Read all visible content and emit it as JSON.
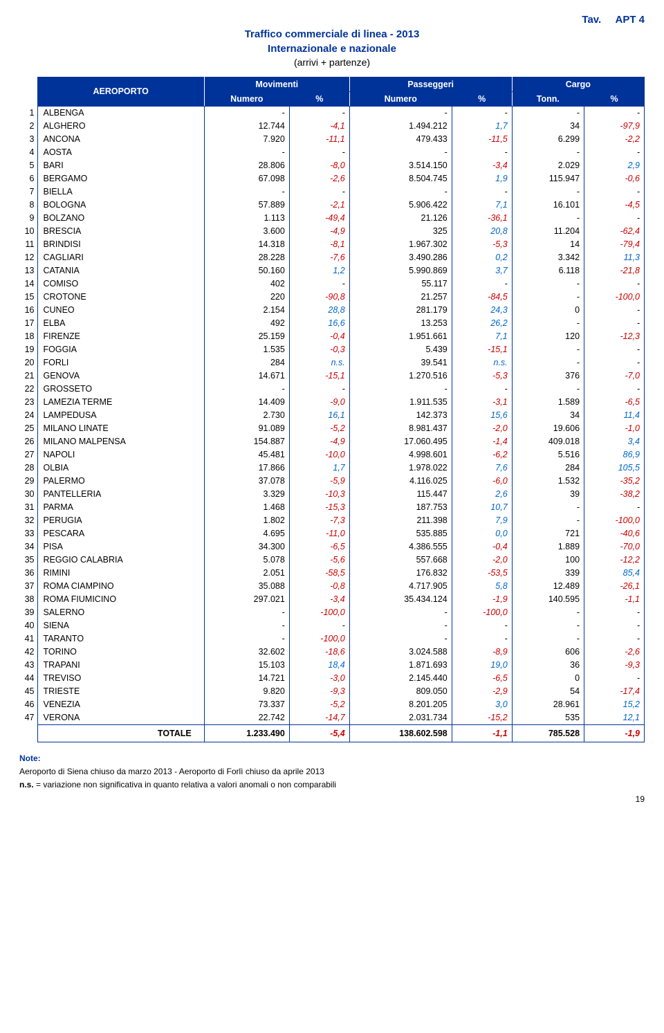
{
  "tav_label": "Tav.",
  "tav_code": "APT 4",
  "title_line1": "Traffico commerciale di linea - 2013",
  "title_line2": "Internazionale e nazionale",
  "title_line3": "(arrivi + partenze)",
  "header": {
    "aeroporto": "AEROPORTO",
    "movimenti": "Movimenti",
    "passeggeri": "Passeggeri",
    "cargo": "Cargo",
    "numero": "Numero",
    "pct": "%",
    "tonn": "Tonn."
  },
  "colors": {
    "neg": "#cc0000",
    "pos": "#0066cc",
    "neutral": "#000000"
  },
  "rows": [
    {
      "n": "1",
      "name": "ALBENGA",
      "m": "-",
      "mp": "-",
      "p": "-",
      "pp": "-",
      "c": "-",
      "cp": "-"
    },
    {
      "n": "2",
      "name": "ALGHERO",
      "m": "12.744",
      "mp": "-4,1",
      "p": "1.494.212",
      "pp": "1,7",
      "c": "34",
      "cp": "-97,9"
    },
    {
      "n": "3",
      "name": "ANCONA",
      "m": "7.920",
      "mp": "-11,1",
      "p": "479.433",
      "pp": "-11,5",
      "c": "6.299",
      "cp": "-2,2"
    },
    {
      "n": "4",
      "name": "AOSTA",
      "m": "-",
      "mp": "-",
      "p": "-",
      "pp": "-",
      "c": "-",
      "cp": "-"
    },
    {
      "n": "5",
      "name": "BARI",
      "m": "28.806",
      "mp": "-8,0",
      "p": "3.514.150",
      "pp": "-3,4",
      "c": "2.029",
      "cp": "2,9"
    },
    {
      "n": "6",
      "name": "BERGAMO",
      "m": "67.098",
      "mp": "-2,6",
      "p": "8.504.745",
      "pp": "1,9",
      "c": "115.947",
      "cp": "-0,6"
    },
    {
      "n": "7",
      "name": "BIELLA",
      "m": "-",
      "mp": "-",
      "p": "-",
      "pp": "-",
      "c": "-",
      "cp": "-"
    },
    {
      "n": "8",
      "name": "BOLOGNA",
      "m": "57.889",
      "mp": "-2,1",
      "p": "5.906.422",
      "pp": "7,1",
      "c": "16.101",
      "cp": "-4,5"
    },
    {
      "n": "9",
      "name": "BOLZANO",
      "m": "1.113",
      "mp": "-49,4",
      "p": "21.126",
      "pp": "-36,1",
      "c": "-",
      "cp": "-"
    },
    {
      "n": "10",
      "name": "BRESCIA",
      "m": "3.600",
      "mp": "-4,9",
      "p": "325",
      "pp": "20,8",
      "c": "11.204",
      "cp": "-62,4"
    },
    {
      "n": "11",
      "name": "BRINDISI",
      "m": "14.318",
      "mp": "-8,1",
      "p": "1.967.302",
      "pp": "-5,3",
      "c": "14",
      "cp": "-79,4"
    },
    {
      "n": "12",
      "name": "CAGLIARI",
      "m": "28.228",
      "mp": "-7,6",
      "p": "3.490.286",
      "pp": "0,2",
      "c": "3.342",
      "cp": "11,3"
    },
    {
      "n": "13",
      "name": "CATANIA",
      "m": "50.160",
      "mp": "1,2",
      "p": "5.990.869",
      "pp": "3,7",
      "c": "6.118",
      "cp": "-21,8"
    },
    {
      "n": "14",
      "name": "COMISO",
      "m": "402",
      "mp": "-",
      "p": "55.117",
      "pp": "-",
      "c": "-",
      "cp": "-"
    },
    {
      "n": "15",
      "name": "CROTONE",
      "m": "220",
      "mp": "-90,8",
      "p": "21.257",
      "pp": "-84,5",
      "c": "-",
      "cp": "-100,0"
    },
    {
      "n": "16",
      "name": "CUNEO",
      "m": "2.154",
      "mp": "28,8",
      "p": "281.179",
      "pp": "24,3",
      "c": "0",
      "cp": "-"
    },
    {
      "n": "17",
      "name": "ELBA",
      "m": "492",
      "mp": "16,6",
      "p": "13.253",
      "pp": "26,2",
      "c": "-",
      "cp": "-"
    },
    {
      "n": "18",
      "name": "FIRENZE",
      "m": "25.159",
      "mp": "-0,4",
      "p": "1.951.661",
      "pp": "7,1",
      "c": "120",
      "cp": "-12,3"
    },
    {
      "n": "19",
      "name": "FOGGIA",
      "m": "1.535",
      "mp": "-0,3",
      "p": "5.439",
      "pp": "-15,1",
      "c": "-",
      "cp": "-"
    },
    {
      "n": "20",
      "name": "FORLI",
      "m": "284",
      "mp": "n.s.",
      "p": "39.541",
      "pp": "n.s.",
      "c": "-",
      "cp": "-"
    },
    {
      "n": "21",
      "name": "GENOVA",
      "m": "14.671",
      "mp": "-15,1",
      "p": "1.270.516",
      "pp": "-5,3",
      "c": "376",
      "cp": "-7,0"
    },
    {
      "n": "22",
      "name": "GROSSETO",
      "m": "-",
      "mp": "-",
      "p": "-",
      "pp": "-",
      "c": "-",
      "cp": "-"
    },
    {
      "n": "23",
      "name": "LAMEZIA TERME",
      "m": "14.409",
      "mp": "-9,0",
      "p": "1.911.535",
      "pp": "-3,1",
      "c": "1.589",
      "cp": "-6,5"
    },
    {
      "n": "24",
      "name": "LAMPEDUSA",
      "m": "2.730",
      "mp": "16,1",
      "p": "142.373",
      "pp": "15,6",
      "c": "34",
      "cp": "11,4"
    },
    {
      "n": "25",
      "name": "MILANO LINATE",
      "m": "91.089",
      "mp": "-5,2",
      "p": "8.981.437",
      "pp": "-2,0",
      "c": "19.606",
      "cp": "-1,0"
    },
    {
      "n": "26",
      "name": "MILANO MALPENSA",
      "m": "154.887",
      "mp": "-4,9",
      "p": "17.060.495",
      "pp": "-1,4",
      "c": "409.018",
      "cp": "3,4"
    },
    {
      "n": "27",
      "name": "NAPOLI",
      "m": "45.481",
      "mp": "-10,0",
      "p": "4.998.601",
      "pp": "-6,2",
      "c": "5.516",
      "cp": "86,9"
    },
    {
      "n": "28",
      "name": "OLBIA",
      "m": "17.866",
      "mp": "1,7",
      "p": "1.978.022",
      "pp": "7,6",
      "c": "284",
      "cp": "105,5"
    },
    {
      "n": "29",
      "name": "PALERMO",
      "m": "37.078",
      "mp": "-5,9",
      "p": "4.116.025",
      "pp": "-6,0",
      "c": "1.532",
      "cp": "-35,2"
    },
    {
      "n": "30",
      "name": "PANTELLERIA",
      "m": "3.329",
      "mp": "-10,3",
      "p": "115.447",
      "pp": "2,6",
      "c": "39",
      "cp": "-38,2"
    },
    {
      "n": "31",
      "name": "PARMA",
      "m": "1.468",
      "mp": "-15,3",
      "p": "187.753",
      "pp": "10,7",
      "c": "-",
      "cp": "-"
    },
    {
      "n": "32",
      "name": "PERUGIA",
      "m": "1.802",
      "mp": "-7,3",
      "p": "211.398",
      "pp": "7,9",
      "c": "-",
      "cp": "-100,0"
    },
    {
      "n": "33",
      "name": "PESCARA",
      "m": "4.695",
      "mp": "-11,0",
      "p": "535.885",
      "pp": "0,0",
      "c": "721",
      "cp": "-40,6"
    },
    {
      "n": "34",
      "name": "PISA",
      "m": "34.300",
      "mp": "-6,5",
      "p": "4.386.555",
      "pp": "-0,4",
      "c": "1.889",
      "cp": "-70,0"
    },
    {
      "n": "35",
      "name": "REGGIO CALABRIA",
      "m": "5.078",
      "mp": "-5,6",
      "p": "557.668",
      "pp": "-2,0",
      "c": "100",
      "cp": "-12,2"
    },
    {
      "n": "36",
      "name": "RIMINI",
      "m": "2.051",
      "mp": "-58,5",
      "p": "176.832",
      "pp": "-53,5",
      "c": "339",
      "cp": "85,4"
    },
    {
      "n": "37",
      "name": "ROMA CIAMPINO",
      "m": "35.088",
      "mp": "-0,8",
      "p": "4.717.905",
      "pp": "5,8",
      "c": "12.489",
      "cp": "-26,1"
    },
    {
      "n": "38",
      "name": "ROMA FIUMICINO",
      "m": "297.021",
      "mp": "-3,4",
      "p": "35.434.124",
      "pp": "-1,9",
      "c": "140.595",
      "cp": "-1,1"
    },
    {
      "n": "39",
      "name": "SALERNO",
      "m": "-",
      "mp": "-100,0",
      "p": "-",
      "pp": "-100,0",
      "c": "-",
      "cp": "-"
    },
    {
      "n": "40",
      "name": "SIENA",
      "m": "-",
      "mp": "-",
      "p": "-",
      "pp": "-",
      "c": "-",
      "cp": "-"
    },
    {
      "n": "41",
      "name": "TARANTO",
      "m": "-",
      "mp": "-100,0",
      "p": "-",
      "pp": "-",
      "c": "-",
      "cp": "-"
    },
    {
      "n": "42",
      "name": "TORINO",
      "m": "32.602",
      "mp": "-18,6",
      "p": "3.024.588",
      "pp": "-8,9",
      "c": "606",
      "cp": "-2,6"
    },
    {
      "n": "43",
      "name": "TRAPANI",
      "m": "15.103",
      "mp": "18,4",
      "p": "1.871.693",
      "pp": "19,0",
      "c": "36",
      "cp": "-9,3"
    },
    {
      "n": "44",
      "name": "TREVISO",
      "m": "14.721",
      "mp": "-3,0",
      "p": "2.145.440",
      "pp": "-6,5",
      "c": "0",
      "cp": "-"
    },
    {
      "n": "45",
      "name": "TRIESTE",
      "m": "9.820",
      "mp": "-9,3",
      "p": "809.050",
      "pp": "-2,9",
      "c": "54",
      "cp": "-17,4"
    },
    {
      "n": "46",
      "name": "VENEZIA",
      "m": "73.337",
      "mp": "-5,2",
      "p": "8.201.205",
      "pp": "3,0",
      "c": "28.961",
      "cp": "15,2"
    },
    {
      "n": "47",
      "name": "VERONA",
      "m": "22.742",
      "mp": "-14,7",
      "p": "2.031.734",
      "pp": "-15,2",
      "c": "535",
      "cp": "12,1"
    }
  ],
  "total": {
    "name": "TOTALE",
    "m": "1.233.490",
    "mp": "-5,4",
    "p": "138.602.598",
    "pp": "-1,1",
    "c": "785.528",
    "cp": "-1,9"
  },
  "notes": {
    "hdr": "Note:",
    "l1": "Aeroporto di Siena chiuso da marzo 2013 - Aeroporto di Forlì chiuso da aprile 2013",
    "l2a": "n.s.",
    "l2b": " = variazione non significativa in quanto relativa a valori anomali o non comparabili"
  },
  "page_number": "19"
}
